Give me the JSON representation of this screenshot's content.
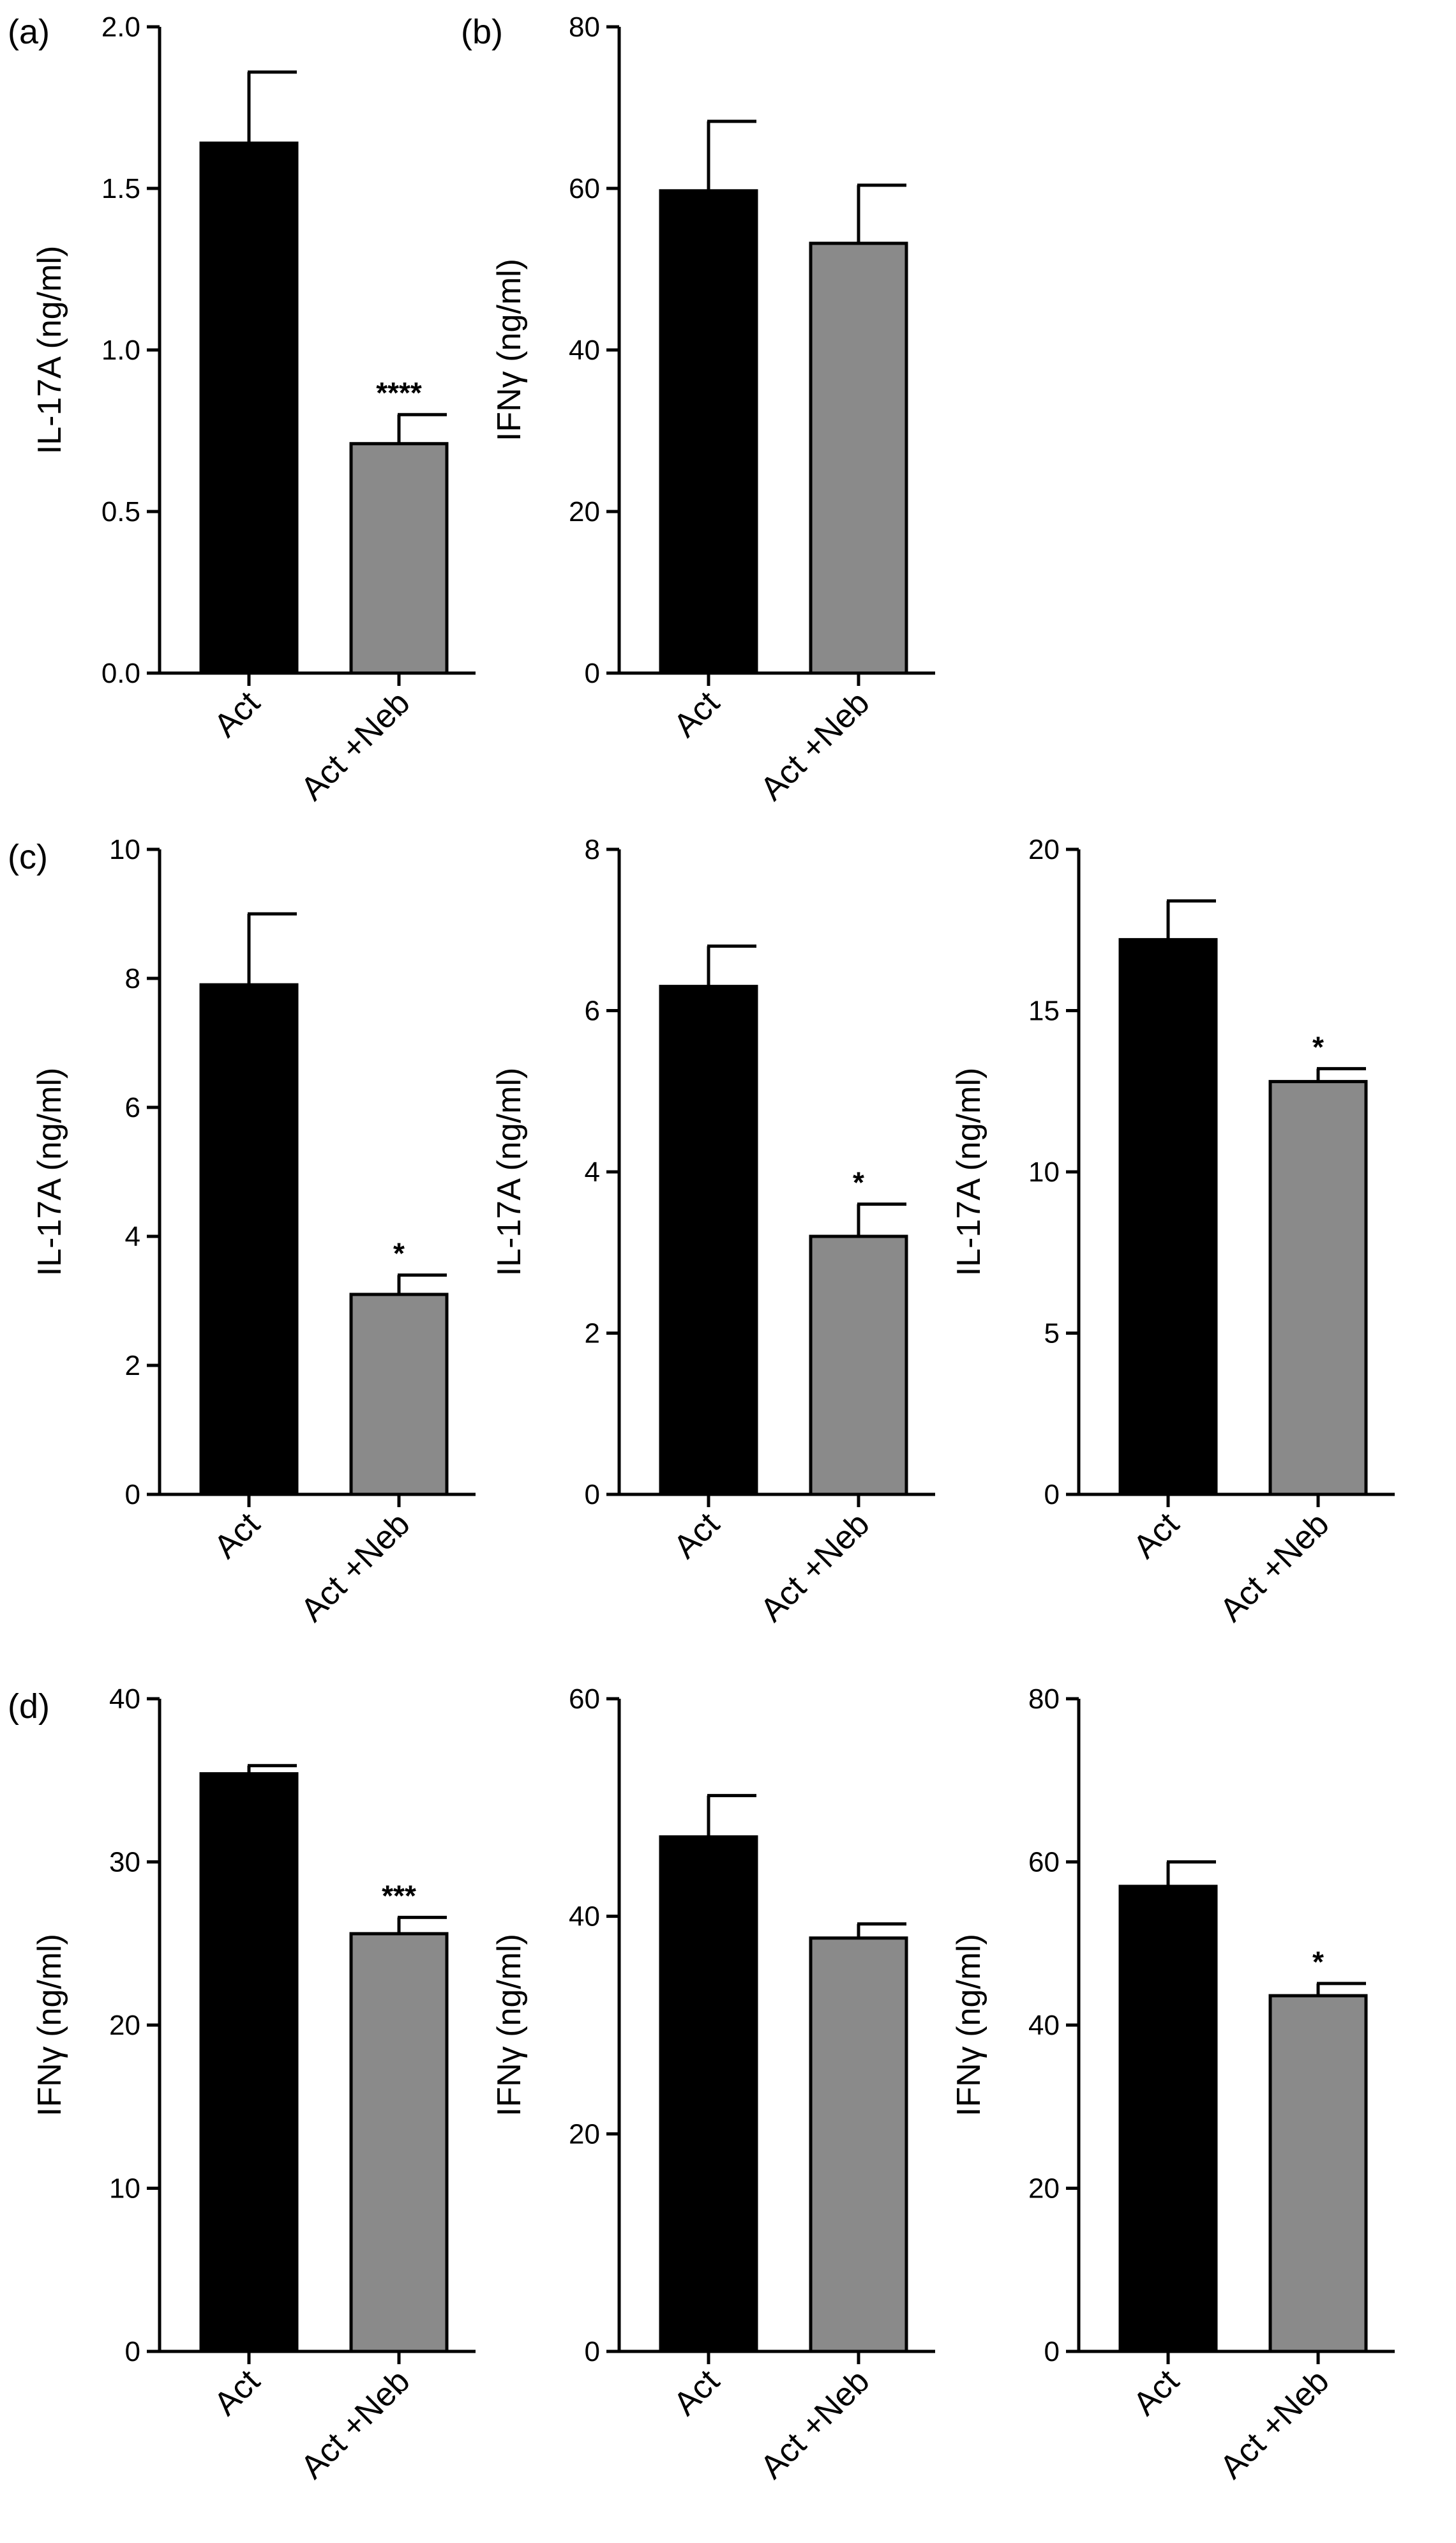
{
  "panel_labels": [
    "(a)",
    "(b)",
    "(c)",
    "(d)"
  ],
  "colors": {
    "act": "#000000",
    "act_neb": "#8a8a8a"
  },
  "chart_data": [
    {
      "id": "a",
      "type": "bar",
      "ylabel": "IL-17A (ng/ml)",
      "ylim": [
        0,
        2.0
      ],
      "yticks": [
        "0.0",
        "0.5",
        "1.0",
        "1.5",
        "2.0"
      ],
      "categories": [
        "Act",
        "Act +Neb"
      ],
      "values": [
        1.64,
        0.71
      ],
      "errors": [
        0.22,
        0.09
      ],
      "significance": [
        "",
        "****"
      ]
    },
    {
      "id": "b",
      "type": "bar",
      "ylabel": "IFNγ (ng/ml)",
      "ylim": [
        0,
        80
      ],
      "yticks": [
        "0",
        "20",
        "40",
        "60",
        "80"
      ],
      "categories": [
        "Act",
        "Act +Neb"
      ],
      "values": [
        59.7,
        53.2
      ],
      "errors": [
        8.6,
        7.2
      ],
      "significance": [
        "",
        ""
      ]
    },
    {
      "id": "c1",
      "type": "bar",
      "ylabel": "IL-17A (ng/ml)",
      "ylim": [
        0,
        10
      ],
      "yticks": [
        "0",
        "2",
        "4",
        "6",
        "8",
        "10"
      ],
      "categories": [
        "Act",
        "Act +Neb"
      ],
      "values": [
        7.9,
        3.1
      ],
      "errors": [
        1.1,
        0.3
      ],
      "significance": [
        "",
        "*"
      ]
    },
    {
      "id": "c2",
      "type": "bar",
      "ylabel": "IL-17A (ng/ml)",
      "ylim": [
        0,
        8
      ],
      "yticks": [
        "0",
        "2",
        "4",
        "6",
        "8"
      ],
      "categories": [
        "Act",
        "Act +Neb"
      ],
      "values": [
        6.3,
        3.2
      ],
      "errors": [
        0.5,
        0.4
      ],
      "significance": [
        "",
        "*"
      ]
    },
    {
      "id": "c3",
      "type": "bar",
      "ylabel": "IL-17A (ng/ml)",
      "ylim": [
        0,
        20
      ],
      "yticks": [
        "0",
        "5",
        "10",
        "15",
        "20"
      ],
      "categories": [
        "Act",
        "Act +Neb"
      ],
      "values": [
        17.2,
        12.8
      ],
      "errors": [
        1.2,
        0.4
      ],
      "significance": [
        "",
        "*"
      ]
    },
    {
      "id": "d1",
      "type": "bar",
      "ylabel": "IFNγ (ng/ml)",
      "ylim": [
        0,
        40
      ],
      "yticks": [
        "0",
        "10",
        "20",
        "30",
        "40"
      ],
      "categories": [
        "Act",
        "Act +Neb"
      ],
      "values": [
        35.4,
        25.6
      ],
      "errors": [
        0.5,
        1.0
      ],
      "significance": [
        "",
        "***"
      ]
    },
    {
      "id": "d2",
      "type": "bar",
      "ylabel": "IFNγ (ng/ml)",
      "ylim": [
        0,
        60
      ],
      "yticks": [
        "0",
        "20",
        "40",
        "60"
      ],
      "categories": [
        "Act",
        "Act +Neb"
      ],
      "values": [
        47.3,
        38.0
      ],
      "errors": [
        3.8,
        1.3
      ],
      "significance": [
        "",
        ""
      ]
    },
    {
      "id": "d3",
      "type": "bar",
      "ylabel": "IFNγ (ng/ml)",
      "ylim": [
        0,
        80
      ],
      "yticks": [
        "0",
        "20",
        "40",
        "60",
        "80"
      ],
      "categories": [
        "Act",
        "Act +Neb"
      ],
      "values": [
        57.0,
        43.6
      ],
      "errors": [
        3.0,
        1.5
      ],
      "significance": [
        "",
        "*"
      ]
    }
  ]
}
